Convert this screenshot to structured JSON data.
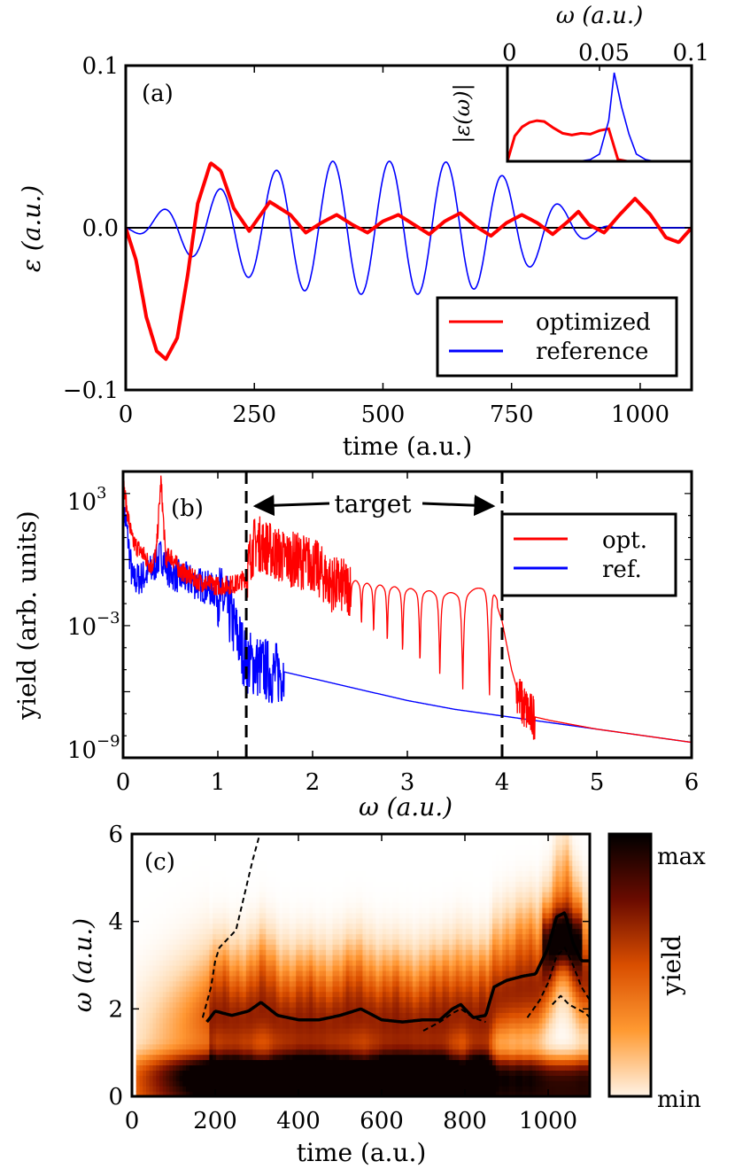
{
  "chart_data": [
    {
      "panel": "(a)",
      "type": "line",
      "xlabel": "time (a.u.)",
      "ylabel": "ε (a.u.)",
      "xlim": [
        0,
        1100
      ],
      "ylim": [
        -0.1,
        0.1
      ],
      "xticks": [
        0,
        250,
        500,
        750,
        1000
      ],
      "xtick_labels": [
        "0",
        "250",
        "500",
        "750",
        "1000"
      ],
      "yticks": [
        -0.1,
        0.0,
        0.1
      ],
      "ytick_labels": [
        "−0.1",
        "0.0",
        "0.1"
      ],
      "legend_position": "bottom-right",
      "series": [
        {
          "name": "optimized",
          "color": "#ff0000",
          "x": [
            0,
            20,
            40,
            60,
            78,
            100,
            120,
            140,
            165,
            185,
            210,
            240,
            280,
            320,
            350,
            380,
            410,
            440,
            470,
            500,
            530,
            560,
            590,
            620,
            650,
            680,
            710,
            740,
            770,
            800,
            830,
            860,
            880,
            900,
            930,
            960,
            990,
            1020,
            1050,
            1075,
            1100
          ],
          "values": [
            0,
            -0.02,
            -0.055,
            -0.076,
            -0.081,
            -0.068,
            -0.03,
            0.015,
            0.04,
            0.035,
            0.012,
            -0.002,
            0.016,
            0.008,
            -0.003,
            0.003,
            0.008,
            0.002,
            -0.003,
            0.004,
            0.008,
            0.002,
            -0.004,
            0.004,
            0.009,
            0.001,
            -0.005,
            0.003,
            0.008,
            0.003,
            -0.004,
            0.004,
            0.01,
            0.002,
            -0.003,
            0.008,
            0.018,
            0.008,
            -0.006,
            -0.009,
            0
          ]
        },
        {
          "name": "reference",
          "color": "#0000ff",
          "amplitude": [
            0,
            0.008,
            0.015,
            0.02,
            0.026,
            0.032,
            0.036,
            0.039,
            0.041,
            0.041,
            0.041,
            0.04,
            0.036,
            0.03,
            0.022,
            0.013,
            0.006,
            0,
            0
          ],
          "amplitude_t": [
            0,
            50,
            100,
            150,
            200,
            250,
            300,
            350,
            400,
            500,
            600,
            650,
            700,
            750,
            800,
            850,
            900,
            950,
            1100
          ],
          "period": 110,
          "phase_t0": 45
        }
      ],
      "inset": {
        "xlabel": "ω (a.u.)",
        "ylabel": "|ε(ω)|",
        "xlim": [
          0,
          0.1
        ],
        "xticks": [
          0,
          0.05,
          0.1
        ],
        "xtick_labels": [
          "0",
          "0.05",
          "0.1"
        ],
        "series": [
          {
            "name": "optimized",
            "color": "#ff0000",
            "x": [
              0,
              0.004,
              0.008,
              0.012,
              0.016,
              0.02,
              0.025,
              0.03,
              0.035,
              0.04,
              0.045,
              0.05,
              0.055,
              0.06,
              0.065,
              0.1
            ],
            "values": [
              0,
              0.28,
              0.38,
              0.43,
              0.45,
              0.44,
              0.37,
              0.31,
              0.29,
              0.31,
              0.3,
              0.34,
              0.36,
              0.02,
              0,
              0
            ]
          },
          {
            "name": "reference",
            "color": "#0000ff",
            "x": [
              0,
              0.03,
              0.04,
              0.045,
              0.05,
              0.055,
              0.058,
              0.062,
              0.066,
              0.07,
              0.075,
              0.08,
              0.1
            ],
            "values": [
              0,
              0,
              0.005,
              0.02,
              0.08,
              0.45,
              0.98,
              0.6,
              0.3,
              0.08,
              0.02,
              0,
              0
            ]
          }
        ]
      }
    },
    {
      "panel": "(b)",
      "type": "line",
      "yscale": "log",
      "xlabel": "ω (a.u.)",
      "ylabel": "yield (arb. units)",
      "xlim": [
        0,
        6
      ],
      "ylim_log10": [
        -9,
        4
      ],
      "xticks": [
        0,
        1,
        2,
        3,
        4,
        5,
        6
      ],
      "xtick_labels": [
        "0",
        "1",
        "2",
        "3",
        "4",
        "5",
        "6"
      ],
      "yticks_log10": [
        3,
        -3,
        -9
      ],
      "ytick_labels": [
        "10",
        "10",
        "10"
      ],
      "ytick_exponents": [
        "3",
        "−3",
        "−9"
      ],
      "target_window": [
        1.3,
        4.0
      ],
      "target_label": "target",
      "legend_position": "top-right",
      "series": [
        {
          "name": "opt.",
          "color": "#ff0000",
          "x": [
            0,
            0.05,
            0.1,
            0.2,
            0.3,
            0.35,
            0.4,
            0.45,
            0.5,
            0.6,
            0.8,
            1.0,
            1.2,
            1.3,
            1.35,
            1.4,
            1.5,
            1.6,
            1.7,
            1.8,
            2.0,
            2.2,
            2.4,
            2.6,
            2.8,
            3.0,
            3.2,
            3.4,
            3.6,
            3.8,
            3.9,
            4.0,
            4.1,
            4.2,
            4.3,
            4.5,
            5.0,
            5.5,
            6.0
          ],
          "log10": [
            3.5,
            2,
            0.8,
            0.3,
            -0.3,
            0.3,
            3.6,
            0,
            0.2,
            -0.5,
            -1,
            -1.2,
            -1.1,
            -0.8,
            0.3,
            0.8,
            0.6,
            0.3,
            0.1,
            0,
            -0.2,
            -1.1,
            -1.3,
            -1.5,
            -1.6,
            -1.7,
            -1.8,
            -1.9,
            -1.9,
            -1.6,
            -1.5,
            -2.8,
            -5,
            -6.5,
            -7.1,
            -7.3,
            -7.7,
            -8.0,
            -8.3
          ]
        },
        {
          "name": "ref.",
          "color": "#0000ff",
          "x": [
            0,
            0.05,
            0.1,
            0.2,
            0.3,
            0.4,
            0.5,
            0.6,
            0.8,
            1.0,
            1.1,
            1.2,
            1.3,
            1.4,
            1.5,
            1.6,
            1.7,
            2.0,
            2.5,
            3.0,
            3.5,
            4.0,
            4.5,
            5.0,
            5.5,
            6.0
          ],
          "log10": [
            2.5,
            1,
            -1,
            -0.8,
            -0.5,
            0.2,
            -0.6,
            -0.8,
            -1.1,
            -1.5,
            -2.2,
            -3.4,
            -4.6,
            -4.8,
            -5.0,
            -5.2,
            -5.1,
            -5.4,
            -5.9,
            -6.4,
            -6.8,
            -7.1,
            -7.4,
            -7.7,
            -8.0,
            -8.3
          ]
        }
      ]
    },
    {
      "panel": "(c)",
      "type": "heatmap",
      "xlabel": "time (a.u.)",
      "ylabel": "ω (a.u.)",
      "xlim": [
        0,
        1100
      ],
      "ylim": [
        0,
        6
      ],
      "xticks": [
        0,
        200,
        400,
        600,
        800,
        1000
      ],
      "xtick_labels": [
        "0",
        "200",
        "400",
        "600",
        "800",
        "1000"
      ],
      "yticks": [
        0,
        2,
        4,
        6
      ],
      "ytick_labels": [
        "0",
        "2",
        "4",
        "6"
      ],
      "colorbar": {
        "label": "yield",
        "max_label": "max",
        "min_label": "min"
      },
      "solid_curve": {
        "x": [
          180,
          200,
          240,
          280,
          310,
          350,
          400,
          450,
          500,
          550,
          600,
          650,
          700,
          740,
          770,
          790,
          820,
          850,
          870,
          900,
          940,
          970,
          1000,
          1020,
          1040,
          1060,
          1080,
          1100
        ],
        "values": [
          1.7,
          1.95,
          1.85,
          1.95,
          2.15,
          1.85,
          1.75,
          1.75,
          1.85,
          2.0,
          1.75,
          1.7,
          1.75,
          1.75,
          2.0,
          2.1,
          1.8,
          1.85,
          2.5,
          2.65,
          2.75,
          2.8,
          3.4,
          4.1,
          4.2,
          3.5,
          3.1,
          3.1
        ]
      },
      "dashed_curves": [
        {
          "x": [
            170,
            190,
            200,
            210,
            230,
            250,
            270,
            290,
            310
          ],
          "values": [
            1.8,
            2.5,
            3.1,
            3.4,
            3.6,
            3.8,
            4.6,
            5.4,
            6.1
          ]
        },
        {
          "x": [
            700,
            740,
            770,
            790,
            820,
            850
          ],
          "values": [
            1.5,
            1.7,
            1.9,
            2.0,
            1.8,
            1.7
          ]
        },
        {
          "x": [
            950,
            980,
            1000,
            1020,
            1040,
            1060,
            1080,
            1100
          ],
          "values": [
            1.8,
            2.2,
            2.6,
            3.2,
            3.4,
            3.0,
            2.5,
            2.2
          ]
        },
        {
          "x": [
            1010,
            1030,
            1050,
            1070,
            1090,
            1100
          ],
          "values": [
            2.1,
            2.3,
            2.1,
            2.0,
            1.9,
            1.8
          ]
        }
      ]
    }
  ]
}
